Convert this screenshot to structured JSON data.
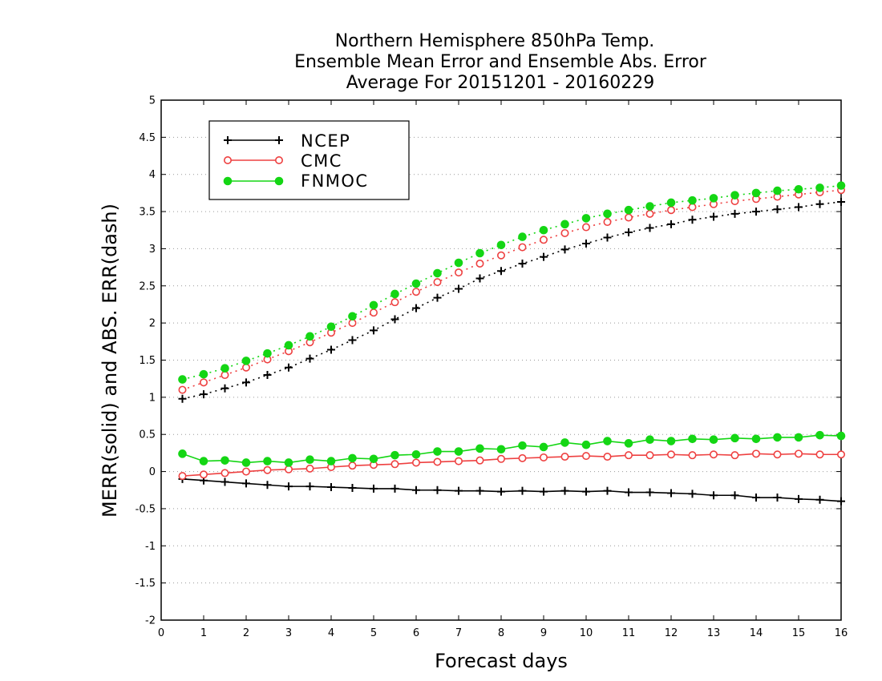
{
  "chart_data": {
    "type": "line",
    "title_lines": [
      "Northern Hemisphere 850hPa Temp.",
      "Ensemble Mean Error and Ensemble Abs. Error",
      "Average For 20151201 - 20160229"
    ],
    "xlabel": "Forecast days",
    "ylabel": "MERR(solid) and ABS. ERR(dash)",
    "xlim": [
      0,
      16
    ],
    "ylim": [
      -2,
      5
    ],
    "x_ticks": [
      0,
      1,
      2,
      3,
      4,
      5,
      6,
      7,
      8,
      9,
      10,
      11,
      12,
      13,
      14,
      15,
      16
    ],
    "y_ticks": [
      -2,
      -1.5,
      -1,
      -0.5,
      0,
      0.5,
      1,
      1.5,
      2,
      2.5,
      3,
      3.5,
      4,
      4.5,
      5
    ],
    "y_tick_labels": [
      "-2",
      "-1.5",
      "-1",
      "-0.5",
      "0",
      "0.5",
      "1",
      "1.5",
      "2",
      "2.5",
      "3",
      "3.5",
      "4",
      "4.5",
      "5"
    ],
    "grid": "horizontal dotted",
    "legend_position": "top-left",
    "x": [
      0.5,
      1,
      1.5,
      2,
      2.5,
      3,
      3.5,
      4,
      4.5,
      5,
      5.5,
      6,
      6.5,
      7,
      7.5,
      8,
      8.5,
      9,
      9.5,
      10,
      10.5,
      11,
      11.5,
      12,
      12.5,
      13,
      13.5,
      14,
      14.5,
      15,
      15.5,
      16
    ],
    "series": [
      {
        "name": "NCEP",
        "color": "#000000",
        "marker": "plus",
        "merr": [
          -0.1,
          -0.12,
          -0.14,
          -0.16,
          -0.18,
          -0.2,
          -0.2,
          -0.21,
          -0.22,
          -0.23,
          -0.23,
          -0.25,
          -0.25,
          -0.26,
          -0.26,
          -0.27,
          -0.26,
          -0.27,
          -0.26,
          -0.27,
          -0.26,
          -0.28,
          -0.28,
          -0.29,
          -0.3,
          -0.32,
          -0.32,
          -0.35,
          -0.35,
          -0.37,
          -0.38,
          -0.4
        ],
        "abs_err": [
          0.98,
          1.04,
          1.12,
          1.2,
          1.3,
          1.4,
          1.52,
          1.64,
          1.77,
          1.9,
          2.05,
          2.2,
          2.34,
          2.46,
          2.6,
          2.7,
          2.8,
          2.89,
          2.99,
          3.07,
          3.15,
          3.22,
          3.28,
          3.33,
          3.39,
          3.43,
          3.47,
          3.5,
          3.53,
          3.56,
          3.6,
          3.63
        ]
      },
      {
        "name": "CMC",
        "color": "#ee4040",
        "marker": "open-circle",
        "merr": [
          -0.06,
          -0.04,
          -0.02,
          0.0,
          0.02,
          0.03,
          0.04,
          0.06,
          0.08,
          0.09,
          0.1,
          0.12,
          0.13,
          0.14,
          0.15,
          0.17,
          0.18,
          0.19,
          0.2,
          0.21,
          0.2,
          0.22,
          0.22,
          0.23,
          0.22,
          0.23,
          0.22,
          0.24,
          0.23,
          0.24,
          0.23,
          0.23
        ],
        "abs_err": [
          1.1,
          1.2,
          1.3,
          1.4,
          1.51,
          1.62,
          1.74,
          1.87,
          2.0,
          2.14,
          2.28,
          2.42,
          2.55,
          2.68,
          2.8,
          2.91,
          3.02,
          3.12,
          3.21,
          3.29,
          3.36,
          3.42,
          3.47,
          3.52,
          3.56,
          3.6,
          3.64,
          3.67,
          3.7,
          3.73,
          3.76,
          3.79
        ]
      },
      {
        "name": "FNMOC",
        "color": "#14d614",
        "marker": "filled-circle",
        "merr": [
          0.24,
          0.14,
          0.15,
          0.12,
          0.14,
          0.12,
          0.16,
          0.14,
          0.18,
          0.17,
          0.22,
          0.23,
          0.27,
          0.27,
          0.31,
          0.3,
          0.35,
          0.33,
          0.39,
          0.36,
          0.41,
          0.38,
          0.43,
          0.41,
          0.44,
          0.43,
          0.45,
          0.44,
          0.46,
          0.46,
          0.49,
          0.48
        ],
        "abs_err": [
          1.24,
          1.31,
          1.39,
          1.49,
          1.59,
          1.7,
          1.82,
          1.95,
          2.09,
          2.24,
          2.39,
          2.53,
          2.67,
          2.81,
          2.94,
          3.05,
          3.16,
          3.25,
          3.33,
          3.41,
          3.47,
          3.52,
          3.57,
          3.62,
          3.65,
          3.68,
          3.72,
          3.75,
          3.78,
          3.8,
          3.82,
          3.85
        ]
      }
    ]
  }
}
